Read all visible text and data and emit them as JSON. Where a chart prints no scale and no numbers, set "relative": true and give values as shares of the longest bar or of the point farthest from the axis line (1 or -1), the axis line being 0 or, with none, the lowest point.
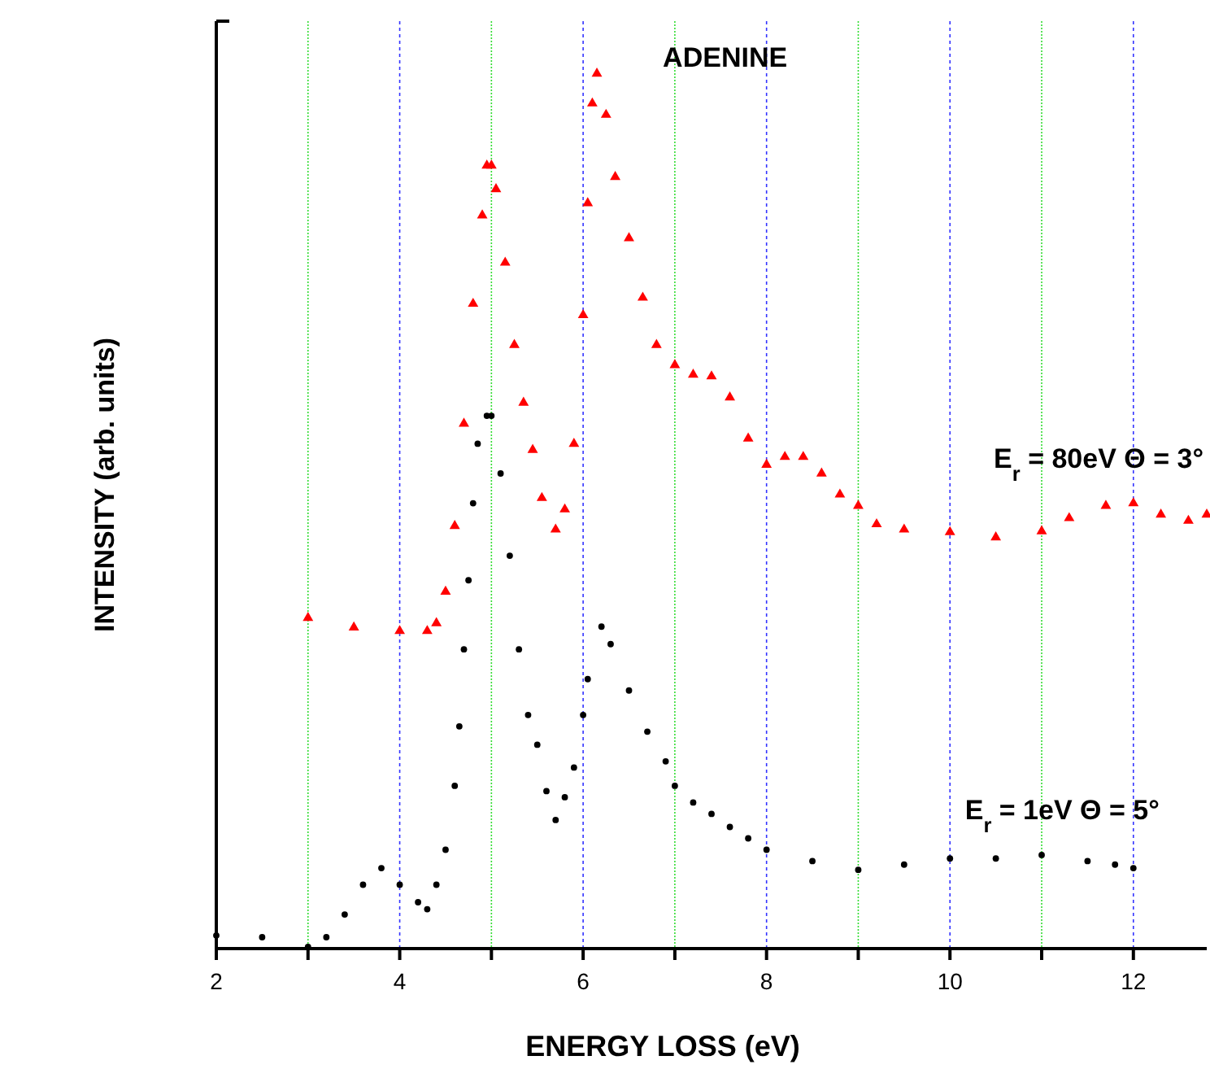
{
  "chart_data": {
    "type": "scatter",
    "title": "ADENINE",
    "xlabel": "ENERGY LOSS (eV)",
    "ylabel": "INTENSITY (arb. units)",
    "relative": true,
    "xlim": [
      2,
      12.8
    ],
    "xticks": [
      2,
      {
        "value": 3,
        "label": null
      },
      4,
      {
        "value": 5,
        "label": null
      },
      6,
      {
        "value": 7,
        "label": null
      },
      8,
      {
        "value": 9,
        "label": null
      },
      10,
      {
        "value": 11,
        "label": null
      },
      12
    ],
    "grid": "x",
    "series": [
      {
        "name": "E$_{r}$ = 80eV  Θ = 3°",
        "color": "#ff0000",
        "marker": "triangle",
        "x": [
          3.0,
          3.5,
          4.0,
          4.3,
          4.4,
          4.5,
          4.6,
          4.7,
          4.8,
          4.9,
          4.95,
          5.0,
          5.05,
          5.15,
          5.25,
          5.35,
          5.45,
          5.55,
          5.7,
          5.8,
          5.9,
          6.0,
          6.05,
          6.1,
          6.15,
          6.25,
          6.35,
          6.5,
          6.65,
          6.8,
          7.0,
          7.2,
          7.4,
          7.6,
          7.8,
          8.0,
          8.2,
          8.4,
          8.6,
          8.8,
          9.0,
          9.2,
          9.5,
          10.0,
          10.5,
          11.0,
          11.3,
          11.7,
          12.0,
          12.3,
          12.6,
          12.8
        ],
        "values": [
          0.378,
          0.367,
          0.363,
          0.363,
          0.372,
          0.408,
          0.483,
          0.6,
          0.737,
          0.838,
          0.895,
          0.895,
          0.868,
          0.784,
          0.69,
          0.624,
          0.57,
          0.515,
          0.479,
          0.502,
          0.577,
          0.724,
          0.852,
          0.966,
          1.0,
          0.953,
          0.882,
          0.812,
          0.744,
          0.69,
          0.667,
          0.656,
          0.654,
          0.63,
          0.583,
          0.553,
          0.562,
          0.562,
          0.543,
          0.519,
          0.506,
          0.485,
          0.479,
          0.476,
          0.47,
          0.477,
          0.492,
          0.506,
          0.509,
          0.496,
          0.489,
          0.496
        ]
      },
      {
        "name": "E$_{r}$ = 1eV Θ = 5°",
        "color": "#000000",
        "marker": "circle",
        "x": [
          2.0,
          2.5,
          3.0,
          3.2,
          3.4,
          3.6,
          3.8,
          4.0,
          4.2,
          4.3,
          4.4,
          4.5,
          4.6,
          4.65,
          4.7,
          4.75,
          4.8,
          4.85,
          4.95,
          5.0,
          5.1,
          5.2,
          5.3,
          5.4,
          5.5,
          5.6,
          5.7,
          5.8,
          5.9,
          6.0,
          6.05,
          6.2,
          6.3,
          6.5,
          6.7,
          6.9,
          7.0,
          7.2,
          7.4,
          7.6,
          7.8,
          8.0,
          8.5,
          9.0,
          9.5,
          10.0,
          10.5,
          11.0,
          11.5,
          11.8,
          12.0
        ],
        "values": [
          0.015,
          0.013,
          0.002,
          0.013,
          0.039,
          0.073,
          0.092,
          0.073,
          0.053,
          0.045,
          0.073,
          0.113,
          0.186,
          0.254,
          0.342,
          0.421,
          0.509,
          0.577,
          0.609,
          0.609,
          0.543,
          0.449,
          0.342,
          0.267,
          0.233,
          0.18,
          0.147,
          0.173,
          0.207,
          0.267,
          0.308,
          0.368,
          0.348,
          0.295,
          0.248,
          0.214,
          0.186,
          0.167,
          0.154,
          0.139,
          0.126,
          0.113,
          0.1,
          0.09,
          0.096,
          0.103,
          0.103,
          0.107,
          0.1,
          0.096,
          0.092
        ]
      }
    ]
  }
}
